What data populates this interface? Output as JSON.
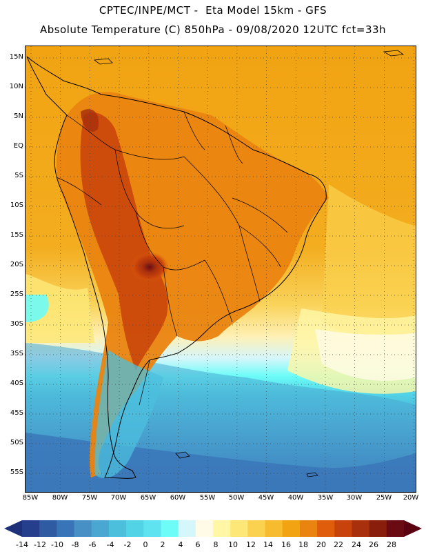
{
  "header": {
    "title": "CPTEC/INPE/MCT -  Eta Model 15km - GFS",
    "subtitle": "Absolute Temperature (C) 850hPa - 09/08/2020 12UTC fct=33h"
  },
  "map": {
    "lat_labels": [
      "15N",
      "10N",
      "5N",
      "EQ",
      "5S",
      "10S",
      "15S",
      "20S",
      "25S",
      "30S",
      "35S",
      "40S",
      "45S",
      "50S",
      "55S"
    ],
    "lon_labels": [
      "85W",
      "80W",
      "75W",
      "70W",
      "65W",
      "60W",
      "55W",
      "50W",
      "45W",
      "40W",
      "35W",
      "30W",
      "25W",
      "20W"
    ]
  },
  "colorbar": {
    "labels": [
      "-14",
      "-12",
      "-10",
      "-8",
      "-6",
      "-4",
      "-2",
      "0",
      "2",
      "4",
      "6",
      "8",
      "10",
      "12",
      "14",
      "16",
      "18",
      "20",
      "22",
      "24",
      "26",
      "28"
    ],
    "colors": [
      "#253f8c",
      "#2f5ba3",
      "#3a74b8",
      "#4690c6",
      "#4aa7d2",
      "#4cbfdd",
      "#52d3e6",
      "#5fe3f0",
      "#6dfcf8",
      "#d5f6fb",
      "#fffbe6",
      "#fff6a6",
      "#fde777",
      "#fbd24f",
      "#f7bb2f",
      "#f1a312",
      "#ea8410",
      "#df5d0b",
      "#c8420b",
      "#a9300c",
      "#8a1e0d",
      "#6a0b14"
    ],
    "left_end_color": "#1e3178",
    "right_end_color": "#5a0010"
  }
}
